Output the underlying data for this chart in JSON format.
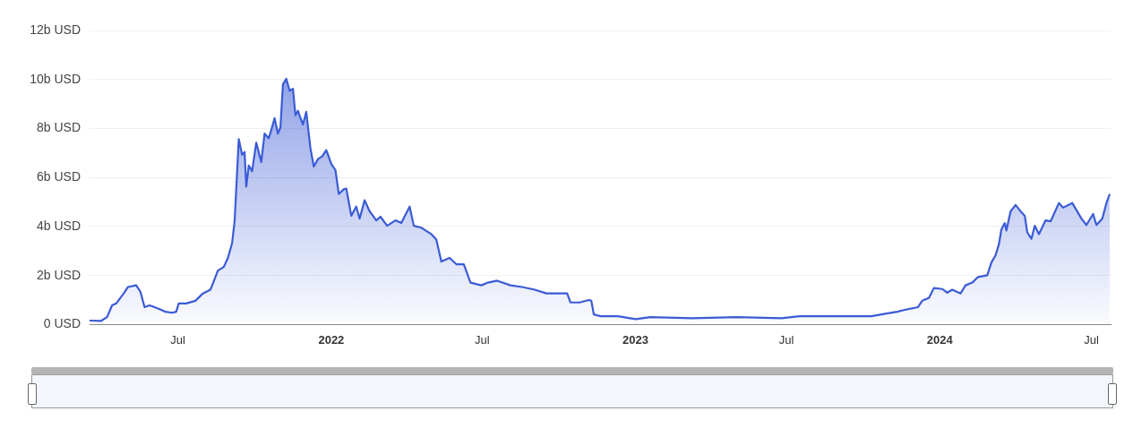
{
  "chart_data": {
    "type": "area",
    "x": [
      "2021-03-17",
      "2021-03-31",
      "2021-04-07",
      "2021-04-13",
      "2021-04-18",
      "2021-04-27",
      "2021-05-02",
      "2021-05-12",
      "2021-05-17",
      "2021-05-22",
      "2021-05-28",
      "2021-06-03",
      "2021-06-11",
      "2021-06-16",
      "2021-06-24",
      "2021-06-29",
      "2021-07-02",
      "2021-07-11",
      "2021-07-22",
      "2021-07-31",
      "2021-08-09",
      "2021-08-18",
      "2021-08-25",
      "2021-08-30",
      "2021-09-04",
      "2021-09-07",
      "2021-09-12",
      "2021-09-16",
      "2021-09-19",
      "2021-09-21",
      "2021-09-24",
      "2021-09-28",
      "2021-10-03",
      "2021-10-09",
      "2021-10-13",
      "2021-10-18",
      "2021-10-21",
      "2021-10-25",
      "2021-10-29",
      "2021-11-01",
      "2021-11-04",
      "2021-11-08",
      "2021-11-12",
      "2021-11-16",
      "2021-11-19",
      "2021-11-22",
      "2021-11-28",
      "2021-12-02",
      "2021-12-07",
      "2021-12-11",
      "2021-12-16",
      "2021-12-21",
      "2021-12-26",
      "2022-01-01",
      "2022-01-06",
      "2022-01-10",
      "2022-01-16",
      "2022-01-19",
      "2022-01-25",
      "2022-01-31",
      "2022-02-04",
      "2022-02-10",
      "2022-02-16",
      "2022-02-24",
      "2022-03-01",
      "2022-03-09",
      "2022-03-19",
      "2022-03-26",
      "2022-04-05",
      "2022-04-10",
      "2022-04-19",
      "2022-05-01",
      "2022-05-07",
      "2022-05-13",
      "2022-05-23",
      "2022-05-31",
      "2022-06-09",
      "2022-06-17",
      "2022-06-30",
      "2022-07-08",
      "2022-07-19",
      "2022-08-04",
      "2022-08-18",
      "2022-09-02",
      "2022-09-16",
      "2022-10-11",
      "2022-10-15",
      "2022-10-26",
      "2022-11-06",
      "2022-11-09",
      "2022-11-12",
      "2022-11-20",
      "2022-11-23",
      "2022-12-11",
      "2023-01-01",
      "2023-01-19",
      "2023-03-10",
      "2023-05-03",
      "2023-06-25",
      "2023-07-17",
      "2023-08-18",
      "2023-10-11",
      "2023-10-29",
      "2023-11-11",
      "2023-11-20",
      "2023-12-06",
      "2023-12-11",
      "2023-12-19",
      "2023-12-25",
      "2024-01-04",
      "2024-01-10",
      "2024-01-16",
      "2024-01-26",
      "2024-02-01",
      "2024-02-09",
      "2024-02-16",
      "2024-02-27",
      "2024-03-03",
      "2024-03-08",
      "2024-03-12",
      "2024-03-15",
      "2024-03-19",
      "2024-03-21",
      "2024-03-26",
      "2024-04-01",
      "2024-04-08",
      "2024-04-12",
      "2024-04-15",
      "2024-04-20",
      "2024-04-24",
      "2024-04-29",
      "2024-05-07",
      "2024-05-13",
      "2024-05-23",
      "2024-05-28",
      "2024-06-08",
      "2024-06-19",
      "2024-06-25",
      "2024-07-03",
      "2024-07-07",
      "2024-07-14",
      "2024-07-19",
      "2024-07-23"
    ],
    "series": [
      {
        "color": "#3b5bd6",
        "values": [
          0.16,
          0.15,
          0.3,
          0.78,
          0.86,
          1.27,
          1.53,
          1.6,
          1.34,
          0.71,
          0.78,
          0.71,
          0.6,
          0.52,
          0.48,
          0.52,
          0.86,
          0.86,
          0.97,
          1.27,
          1.42,
          2.2,
          2.35,
          2.72,
          3.32,
          4.21,
          7.57,
          6.93,
          7.04,
          5.63,
          6.49,
          6.26,
          7.42,
          6.63,
          7.79,
          7.6,
          7.94,
          8.42,
          7.79,
          8.05,
          9.8,
          10.03,
          9.54,
          9.62,
          8.54,
          8.72,
          8.16,
          8.68,
          7.19,
          6.45,
          6.75,
          6.86,
          7.12,
          6.56,
          6.3,
          5.33,
          5.52,
          5.55,
          4.44,
          4.81,
          4.32,
          5.07,
          4.62,
          4.25,
          4.4,
          4.03,
          4.25,
          4.14,
          4.81,
          4.03,
          3.95,
          3.69,
          3.47,
          2.57,
          2.72,
          2.46,
          2.46,
          1.71,
          1.6,
          1.71,
          1.79,
          1.6,
          1.53,
          1.42,
          1.27,
          1.27,
          0.9,
          0.9,
          1.0,
          0.97,
          0.41,
          0.34,
          0.34,
          0.34,
          0.22,
          0.3,
          0.26,
          0.3,
          0.26,
          0.34,
          0.34,
          0.34,
          0.45,
          0.52,
          0.6,
          0.71,
          0.97,
          1.08,
          1.49,
          1.45,
          1.3,
          1.42,
          1.27,
          1.6,
          1.71,
          1.94,
          2.01,
          2.53,
          2.83,
          3.28,
          3.88,
          4.14,
          3.84,
          4.62,
          4.88,
          4.58,
          4.44,
          3.76,
          3.5,
          4.03,
          3.69,
          4.25,
          4.21,
          4.96,
          4.77,
          4.96,
          4.32,
          4.06,
          4.51,
          4.06,
          4.32,
          4.96,
          5.33
        ]
      }
    ],
    "xlim": [
      "2021-03-17",
      "2024-07-24"
    ],
    "xticks": [
      {
        "value": "2021-07-01",
        "label": "Jul"
      },
      {
        "value": "2022-01-01",
        "label": "2022"
      },
      {
        "value": "2022-07-01",
        "label": "Jul"
      },
      {
        "value": "2023-01-01",
        "label": "2023"
      },
      {
        "value": "2023-07-01",
        "label": "Jul"
      },
      {
        "value": "2024-01-01",
        "label": "2024"
      },
      {
        "value": "2024-07-01",
        "label": "Jul"
      }
    ],
    "ylim": [
      0,
      12
    ],
    "yticks": [
      {
        "value": 0,
        "label": "0 USD"
      },
      {
        "value": 2,
        "label": "2b USD"
      },
      {
        "value": 4,
        "label": "4b USD"
      },
      {
        "value": 6,
        "label": "6b USD"
      },
      {
        "value": 8,
        "label": "8b USD"
      },
      {
        "value": 10,
        "label": "10b USD"
      },
      {
        "value": 12,
        "label": "12b USD"
      }
    ],
    "grid": "y",
    "legend": false,
    "marker": "none",
    "line_style": "solid"
  }
}
